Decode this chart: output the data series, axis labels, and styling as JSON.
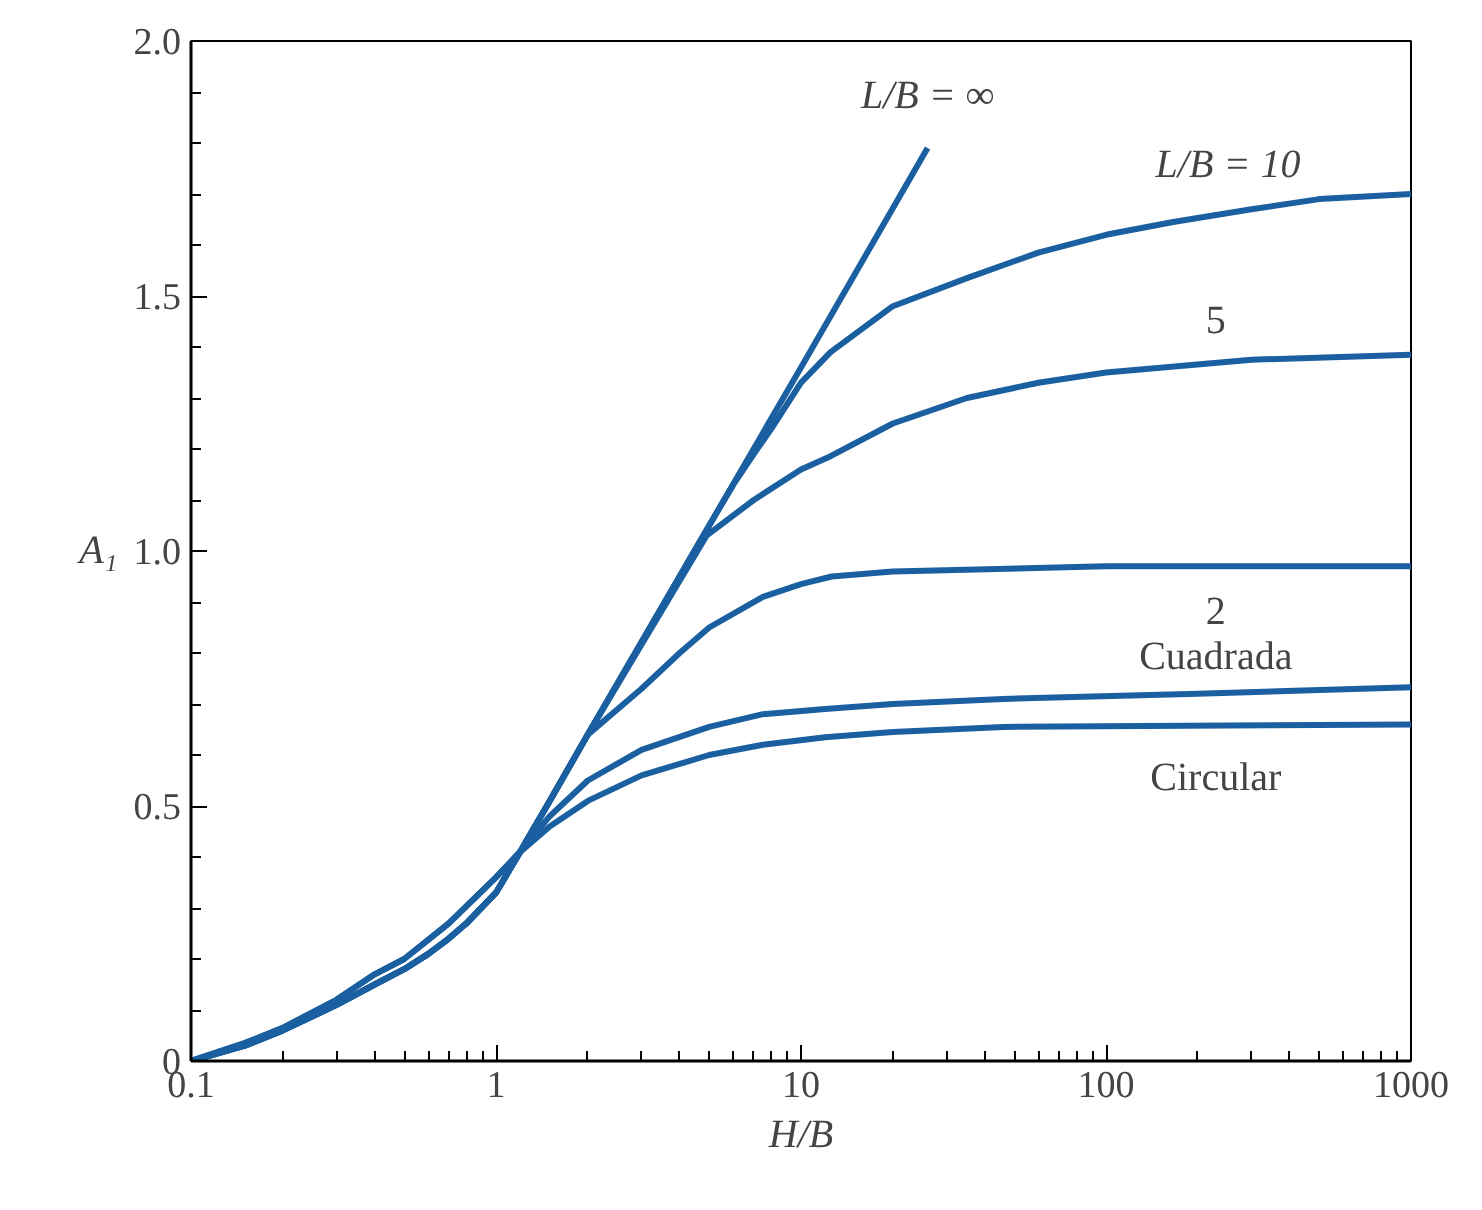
{
  "chart_data": {
    "type": "line",
    "xlabel": "H/B",
    "ylabel": "A₁",
    "log": "x",
    "grid": false,
    "marker": "none",
    "line_style": "solid",
    "xlim": [
      0.1,
      1000
    ],
    "xticks": [
      0.1,
      1,
      10,
      100,
      1000
    ],
    "ylim": [
      0,
      2.0
    ],
    "yticks": [
      0,
      {
        "value": 0.5,
        "label": "0.5"
      },
      {
        "value": 1,
        "label": "1.0"
      },
      {
        "value": 1.5,
        "label": "1.5"
      },
      {
        "value": 2,
        "label": "2.0"
      }
    ],
    "series": [
      {
        "name": "L/B = ∞",
        "color": "#1a5fa0",
        "x": [
          0.1,
          0.15,
          0.2,
          0.3,
          0.4,
          0.5,
          0.6,
          0.7,
          0.8,
          1.0,
          1.2,
          1.5,
          2,
          5,
          10,
          26
        ],
        "values": [
          0,
          0.03,
          0.06,
          0.11,
          0.15,
          0.18,
          0.21,
          0.24,
          0.27,
          0.33,
          0.41,
          0.51,
          0.64,
          1.05,
          1.36,
          1.79
        ]
      },
      {
        "name": "L/B = 10",
        "color": "#1a5fa0",
        "x": [
          0.1,
          0.15,
          0.2,
          0.3,
          0.4,
          0.5,
          0.6,
          0.7,
          0.8,
          1.0,
          1.2,
          1.5,
          2,
          5,
          6,
          7,
          8,
          10,
          12.5,
          20,
          35,
          60,
          100,
          166,
          300,
          500,
          1000
        ],
        "values": [
          0,
          0.03,
          0.06,
          0.11,
          0.15,
          0.18,
          0.21,
          0.24,
          0.27,
          0.33,
          0.41,
          0.51,
          0.64,
          1.05,
          1.13,
          1.19,
          1.24,
          1.33,
          1.39,
          1.48,
          1.535,
          1.585,
          1.62,
          1.645,
          1.67,
          1.69,
          1.7
        ]
      },
      {
        "name": "5",
        "color": "#1a5fa0",
        "x": [
          0.1,
          0.15,
          0.2,
          0.3,
          0.4,
          0.5,
          0.6,
          0.7,
          0.8,
          1.0,
          1.2,
          1.5,
          2,
          4.9,
          7,
          10,
          12.5,
          20,
          35,
          60,
          100,
          300,
          1000
        ],
        "values": [
          0,
          0.03,
          0.06,
          0.11,
          0.15,
          0.18,
          0.21,
          0.24,
          0.27,
          0.33,
          0.41,
          0.51,
          0.64,
          1.03,
          1.1,
          1.16,
          1.186,
          1.25,
          1.3,
          1.33,
          1.35,
          1.375,
          1.385
        ]
      },
      {
        "name": "2",
        "color": "#1a5fa0",
        "x": [
          0.1,
          0.15,
          0.2,
          0.3,
          0.4,
          0.5,
          0.6,
          0.7,
          0.8,
          1.0,
          1.2,
          1.5,
          2,
          3,
          4,
          5,
          7.5,
          10,
          12.6,
          20,
          100,
          1000
        ],
        "values": [
          0,
          0.03,
          0.06,
          0.11,
          0.15,
          0.18,
          0.21,
          0.24,
          0.27,
          0.33,
          0.41,
          0.51,
          0.64,
          0.73,
          0.8,
          0.85,
          0.91,
          0.935,
          0.95,
          0.96,
          0.97,
          0.97
        ]
      },
      {
        "name": "Cuadrada",
        "color": "#1a5fa0",
        "x": [
          0.1,
          0.15,
          0.2,
          0.3,
          0.4,
          0.5,
          0.7,
          1.0,
          1.2,
          1.5,
          2,
          3,
          5,
          7.5,
          12,
          20,
          46,
          200,
          1000
        ],
        "values": [
          0,
          0.035,
          0.065,
          0.12,
          0.17,
          0.2,
          0.27,
          0.36,
          0.41,
          0.48,
          0.55,
          0.61,
          0.655,
          0.68,
          0.69,
          0.7,
          0.71,
          0.72,
          0.733
        ]
      },
      {
        "name": "Circular",
        "color": "#1a5fa0",
        "x": [
          0.1,
          0.15,
          0.2,
          0.3,
          0.4,
          0.5,
          0.7,
          1.0,
          1.2,
          1.5,
          2,
          3,
          5,
          7.5,
          12,
          20,
          46,
          1000
        ],
        "values": [
          0,
          0.035,
          0.065,
          0.12,
          0.17,
          0.2,
          0.27,
          0.36,
          0.41,
          0.46,
          0.51,
          0.56,
          0.6,
          0.62,
          0.635,
          0.645,
          0.655,
          0.66
        ]
      }
    ]
  }
}
